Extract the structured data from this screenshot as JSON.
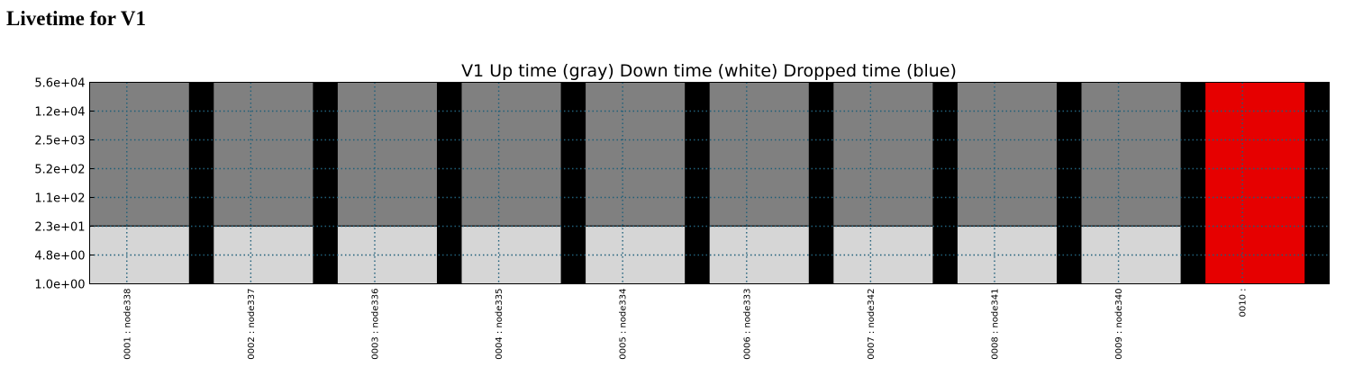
{
  "page": {
    "heading": "Livetime for V1"
  },
  "chart_data": {
    "type": "bar",
    "title": "V1 Up time (gray) Down time (white) Dropped time (blue)",
    "xlabel": "",
    "ylabel": "",
    "y_scale": "log",
    "ylim": [
      1.0,
      56000
    ],
    "y_ticks": [
      "1.0e+00",
      "4.8e+00",
      "2.3e+01",
      "1.1e+02",
      "5.2e+02",
      "2.5e+03",
      "1.2e+04",
      "5.6e+04"
    ],
    "categories": [
      "0001 : node338",
      "0002 : node337",
      "0003 : node336",
      "0004 : node335",
      "0005 : node334",
      "0006 : node333",
      "0007 : node342",
      "0008 : node341",
      "0009 : node340",
      "0010 :"
    ],
    "series": [
      {
        "name": "Up time",
        "color": "#808080",
        "values": [
          56000,
          56000,
          56000,
          56000,
          56000,
          56000,
          56000,
          56000,
          56000,
          0
        ]
      },
      {
        "name": "Down time",
        "color": "#d6d6d6",
        "values": [
          23,
          23,
          23,
          23,
          23,
          23,
          23,
          23,
          23,
          0
        ]
      },
      {
        "name": "Dropped time",
        "color": "#0000ff",
        "values": [
          0,
          0,
          0,
          0,
          0,
          0,
          0,
          0,
          0,
          0
        ]
      }
    ],
    "highlight_color": "#e60000",
    "highlight_category": "0010 :",
    "gap_color": "#000000",
    "grid": true
  }
}
